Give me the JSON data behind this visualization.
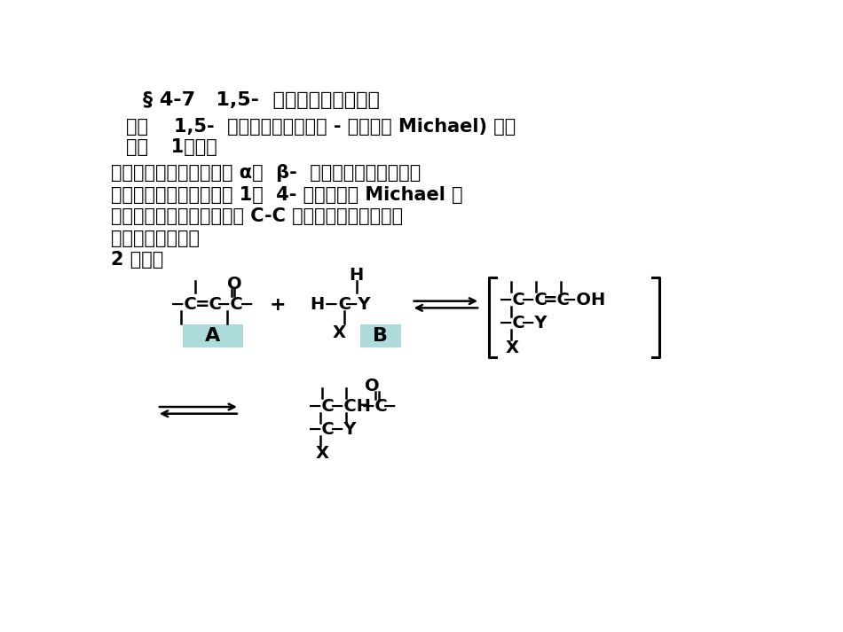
{
  "bg_color": "#ffffff",
  "title_line": "§ 4-7   1,5-  二罰基化合物的拆开",
  "line2": "一、    1,5-  二罰基化合物的合成 - 迈克尔（ Michael) 加成",
  "line3": "反应",
  "line4": "1、实质",
  "para1": "含活泼亚甲基的化合物与 α，  β-  不饱和共轭体系化合物",
  "para2": "在碱性催化剂存在下发生 1，  4- 加成，称为 Michael 加",
  "para3": "成反应。本反应是形成新的 C-C 健的方法，可将多种官",
  "para4": "能团引入分子中。",
  "section2": "2 、通式"
}
